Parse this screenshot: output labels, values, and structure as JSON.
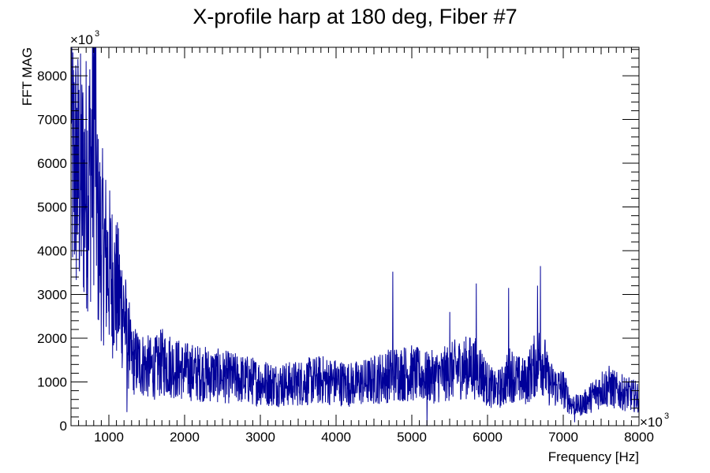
{
  "chart_data": {
    "type": "line",
    "title": "X-profile harp at 180 deg, Fiber #7",
    "xlabel": "Frequency [Hz]",
    "ylabel": "FFT MAG",
    "x_multiplier": "×10",
    "x_multiplier_exp": "3",
    "y_multiplier": "×10",
    "y_multiplier_exp": "3",
    "xlim": [
      500,
      8000
    ],
    "ylim": [
      0,
      8650
    ],
    "x_ticks": [
      1000,
      2000,
      3000,
      4000,
      5000,
      6000,
      7000,
      8000
    ],
    "x_tick_labels": [
      "1000",
      "2000",
      "3000",
      "4000",
      "5000",
      "6000",
      "7000",
      "8000"
    ],
    "y_ticks": [
      0,
      1000,
      2000,
      3000,
      4000,
      5000,
      6000,
      7000,
      8000
    ],
    "y_tick_labels": [
      "0",
      "1000",
      "2000",
      "3000",
      "4000",
      "5000",
      "6000",
      "7000",
      "8000"
    ],
    "grid": false,
    "line_color": "#000099",
    "envelope": [
      [
        500,
        6100
      ],
      [
        550,
        5900
      ],
      [
        600,
        5700
      ],
      [
        650,
        5500
      ],
      [
        700,
        5600
      ],
      [
        750,
        5900
      ],
      [
        780,
        6200
      ],
      [
        800,
        6800
      ],
      [
        815,
        8200
      ],
      [
        830,
        6000
      ],
      [
        850,
        4500
      ],
      [
        900,
        4200
      ],
      [
        1000,
        3600
      ],
      [
        1100,
        3100
      ],
      [
        1200,
        2600
      ],
      [
        1250,
        1800
      ],
      [
        1300,
        1500
      ],
      [
        1400,
        1450
      ],
      [
        1500,
        1350
      ],
      [
        1600,
        1300
      ],
      [
        1700,
        1450
      ],
      [
        1800,
        1400
      ],
      [
        1900,
        1300
      ],
      [
        2000,
        1250
      ],
      [
        2200,
        1200
      ],
      [
        2400,
        1150
      ],
      [
        2600,
        1100
      ],
      [
        2800,
        1050
      ],
      [
        3000,
        1000
      ],
      [
        3200,
        950
      ],
      [
        3400,
        950
      ],
      [
        3600,
        1000
      ],
      [
        3800,
        1050
      ],
      [
        4000,
        1000
      ],
      [
        4200,
        950
      ],
      [
        4400,
        1000
      ],
      [
        4600,
        1100
      ],
      [
        4800,
        1200
      ],
      [
        5000,
        1200
      ],
      [
        5200,
        1100
      ],
      [
        5400,
        1150
      ],
      [
        5600,
        1300
      ],
      [
        5800,
        1350
      ],
      [
        5900,
        1250
      ],
      [
        6000,
        950
      ],
      [
        6100,
        800
      ],
      [
        6200,
        900
      ],
      [
        6300,
        1200
      ],
      [
        6400,
        1050
      ],
      [
        6500,
        1000
      ],
      [
        6600,
        1300
      ],
      [
        6700,
        1600
      ],
      [
        6750,
        1400
      ],
      [
        6800,
        1000
      ],
      [
        6900,
        900
      ],
      [
        7000,
        850
      ],
      [
        7100,
        500
      ],
      [
        7200,
        450
      ],
      [
        7300,
        550
      ],
      [
        7400,
        700
      ],
      [
        7500,
        850
      ],
      [
        7600,
        900
      ],
      [
        7700,
        800
      ],
      [
        7800,
        750
      ],
      [
        7900,
        700
      ],
      [
        8000,
        650
      ]
    ],
    "peaks": [
      [
        815,
        8230
      ],
      [
        790,
        7400
      ],
      [
        505,
        6900
      ],
      [
        4750,
        3520
      ],
      [
        5850,
        3250
      ],
      [
        6280,
        3150
      ],
      [
        6700,
        3650
      ],
      [
        6660,
        3200
      ],
      [
        1270,
        2820
      ],
      [
        5500,
        2600
      ],
      [
        1240,
        310
      ],
      [
        5200,
        10
      ],
      [
        7150,
        80
      ]
    ]
  }
}
